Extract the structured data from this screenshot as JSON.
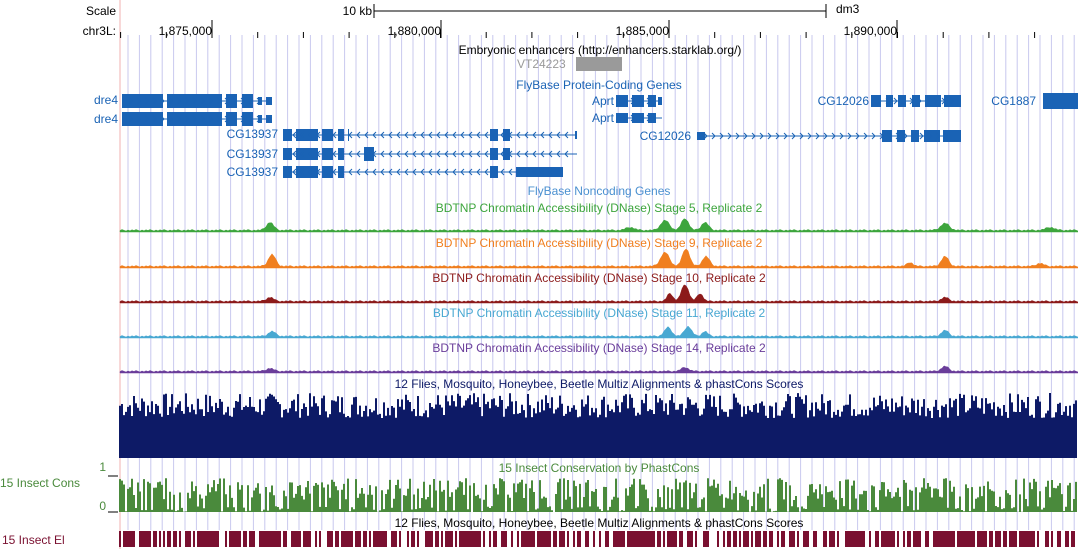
{
  "ruler": {
    "scale_label": "Scale",
    "chrom_label": "chr3L:",
    "scale_bar_label": "10 kb",
    "assembly": "dm3",
    "positions": [
      "1,875,000",
      "1,880,000",
      "1,885,000",
      "1,890,000"
    ]
  },
  "tracks": {
    "enhancers": {
      "title": "Embryonic enhancers (http://enhancers.starklab.org/)",
      "item": "VT24223"
    },
    "protein_coding": {
      "title": "FlyBase Protein-Coding Genes",
      "genes": [
        "dre4",
        "dre4",
        "Aprt",
        "Aprt",
        "CG12026",
        "CG12026",
        "CG1887",
        "CG13937",
        "CG13937",
        "CG13937"
      ]
    },
    "noncoding": {
      "title": "FlyBase Noncoding Genes"
    },
    "dnase": [
      {
        "title": "BDTNP Chromatin Accessibility (DNase) Stage 5, Replicate 2",
        "color": "#3da53d"
      },
      {
        "title": "BDTNP Chromatin Accessibility (DNase) Stage 9, Replicate 2",
        "color": "#f07f1f"
      },
      {
        "title": "BDTNP Chromatin Accessibility (DNase) Stage 10, Replicate 2",
        "color": "#8c1a1a"
      },
      {
        "title": "BDTNP Chromatin Accessibility (DNase) Stage 11, Replicate 2",
        "color": "#48a8d2"
      },
      {
        "title": "BDTNP Chromatin Accessibility (DNase) Stage 14, Replicate 2",
        "color": "#6a3d9a"
      }
    ],
    "multiz": {
      "title": "12 Flies, Mosquito, Honeybee, Beetle Multiz Alignments & phastCons Scores",
      "color": "#0d1a66"
    },
    "insect_cons": {
      "title": "15 Insect Conservation by PhastCons",
      "side_label": "15 Insect Cons",
      "scale_max": "1",
      "scale_min": "0",
      "color": "#4a8a3c"
    },
    "insect_el": {
      "title": "12 Flies, Mosquito, Honeybee, Beetle Multiz Alignments & phastCons Scores",
      "side_label": "15 Insect El",
      "color": "#7a1030"
    }
  },
  "colors": {
    "gene": "#1a63b5",
    "gridline": "#c8c8ee",
    "label_blue": "#1a63b5"
  }
}
